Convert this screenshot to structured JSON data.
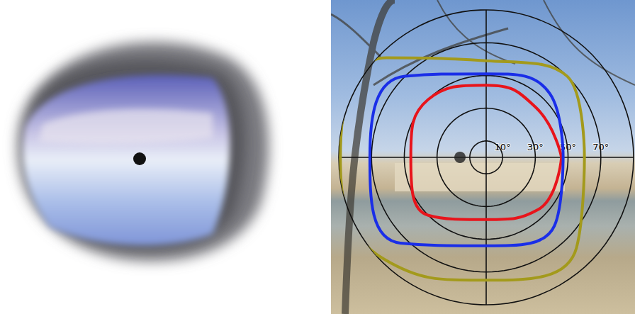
{
  "chart_data": {
    "type": "polar",
    "xlim": [
      0,
      360
    ],
    "xticks": [
      0,
      90,
      180,
      270
    ],
    "ylim": [
      0,
      90
    ],
    "yticks": [
      {
        "value": 10,
        "label": "10°"
      },
      {
        "value": 30,
        "label": "30°"
      },
      {
        "value": 50,
        "label": "50°"
      },
      {
        "value": 70,
        "label": "70°"
      }
    ],
    "grid": true,
    "tick_labels": "y",
    "fixation": {
      "r": 16,
      "angle": 180
    },
    "series": [
      {
        "color": "#e8141b",
        "angles": [
          0,
          45,
          90,
          135,
          180,
          225,
          270,
          315,
          360
        ],
        "values": [
          46,
          43,
          44,
          50,
          46,
          50,
          38,
          45,
          46
        ]
      },
      {
        "color": "#1a2ee8",
        "angles": [
          0,
          45,
          90,
          135,
          180,
          225,
          270,
          315,
          360
        ],
        "values": [
          47,
          55,
          51,
          70,
          71,
          74,
          54,
          59,
          47
        ]
      },
      {
        "color": "#a39a1c",
        "angles": [
          0,
          45,
          90,
          135,
          180,
          225,
          270,
          315,
          360
        ],
        "values": [
          60,
          70,
          59,
          86,
          89,
          88,
          75,
          78,
          60
        ]
      }
    ]
  }
}
